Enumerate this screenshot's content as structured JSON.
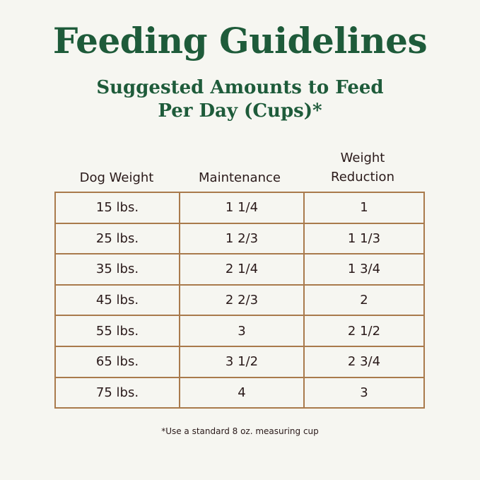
{
  "title": "Feeding Guidelines",
  "subtitle_line1": "Suggested Amounts to Feed",
  "subtitle_line2": "Per Day (Cups)*",
  "headers": [
    "Dog Weight",
    "Maintenance",
    "Weight",
    "Reduction"
  ],
  "rows": [
    [
      "15 lbs.",
      "1 1/4",
      "1"
    ],
    [
      "25 lbs.",
      "1 2/3",
      "1 1/3"
    ],
    [
      "35 lbs.",
      "2 1/4",
      "1 3/4"
    ],
    [
      "45 lbs.",
      "2 2/3",
      "2"
    ],
    [
      "55 lbs.",
      "3",
      "2 1/2"
    ],
    [
      "65 lbs.",
      "3 1/2",
      "2 3/4"
    ],
    [
      "75 lbs.",
      "4",
      "3"
    ]
  ],
  "footnote": "*Use a standard 8 oz. measuring cup",
  "colors": {
    "heading": "#1e5b3a",
    "border": "#a97a4c",
    "background": "#f6f6f1",
    "text": "#2a1a1a"
  }
}
